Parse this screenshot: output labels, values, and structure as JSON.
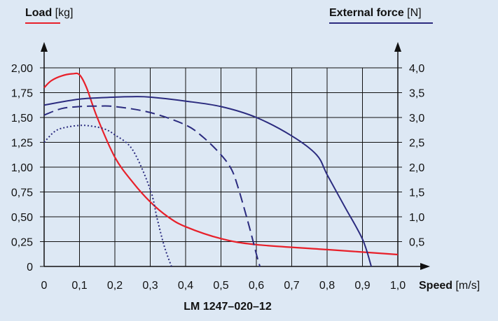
{
  "colors": {
    "background": "#dde8f4",
    "load": "#e8202a",
    "force": "#2b2b7f",
    "axis": "#111111"
  },
  "left_axis": {
    "name": "Load",
    "unit": "[kg]"
  },
  "right_axis": {
    "name": "External force",
    "unit": "[N]"
  },
  "x_axis": {
    "name": "Speed",
    "unit": "[m/s]"
  },
  "footer": "LM 1247–020–12",
  "chart_data": {
    "type": "line",
    "grid": true,
    "xlim": [
      0,
      1.0
    ],
    "xticks": [
      "0",
      "0,1",
      "0,2",
      "0,3",
      "0,4",
      "0,5",
      "0,6",
      "0,7",
      "0,8",
      "0,9",
      "1,0"
    ],
    "ylim_left": [
      0,
      2.0
    ],
    "yticks_left": [
      "0",
      "0,25",
      "0,50",
      "0,75",
      "1,00",
      "1,25",
      "1,50",
      "1,75",
      "2,00"
    ],
    "ylim_right": [
      0,
      4.0
    ],
    "yticks_right": [
      "0,5",
      "1,0",
      "1,5",
      "2,0",
      "2,5",
      "3,0",
      "3,5",
      "4,0"
    ],
    "series": [
      {
        "axis": "left",
        "style": "solid",
        "color": "#e8202a",
        "x": [
          0,
          0.02,
          0.05,
          0.08,
          0.1,
          0.12,
          0.15,
          0.2,
          0.25,
          0.3,
          0.35,
          0.4,
          0.5,
          0.6,
          0.8,
          1.0
        ],
        "y": [
          1.8,
          1.87,
          1.92,
          1.94,
          1.93,
          1.8,
          1.5,
          1.1,
          0.85,
          0.65,
          0.5,
          0.4,
          0.28,
          0.22,
          0.17,
          0.12
        ]
      },
      {
        "axis": "right",
        "style": "solid",
        "color": "#2b2b7f",
        "x": [
          0,
          0.1,
          0.2,
          0.25,
          0.3,
          0.4,
          0.5,
          0.6,
          0.7,
          0.77,
          0.8,
          0.85,
          0.9,
          0.925
        ],
        "y": [
          3.25,
          3.37,
          3.41,
          3.42,
          3.41,
          3.33,
          3.22,
          3.0,
          2.63,
          2.25,
          1.85,
          1.2,
          0.55,
          0.0
        ]
      },
      {
        "axis": "right",
        "style": "dashed",
        "color": "#2b2b7f",
        "x": [
          0,
          0.05,
          0.1,
          0.15,
          0.2,
          0.3,
          0.4,
          0.45,
          0.5,
          0.53,
          0.55,
          0.58,
          0.6,
          0.61
        ],
        "y": [
          3.05,
          3.18,
          3.22,
          3.23,
          3.22,
          3.1,
          2.85,
          2.6,
          2.25,
          1.95,
          1.55,
          0.8,
          0.25,
          0.0
        ]
      },
      {
        "axis": "right",
        "style": "dotted",
        "color": "#2b2b7f",
        "x": [
          0,
          0.03,
          0.06,
          0.1,
          0.13,
          0.17,
          0.2,
          0.25,
          0.3,
          0.32,
          0.34,
          0.36
        ],
        "y": [
          2.5,
          2.72,
          2.8,
          2.84,
          2.83,
          2.77,
          2.65,
          2.35,
          1.55,
          0.95,
          0.4,
          0.0
        ]
      }
    ]
  }
}
